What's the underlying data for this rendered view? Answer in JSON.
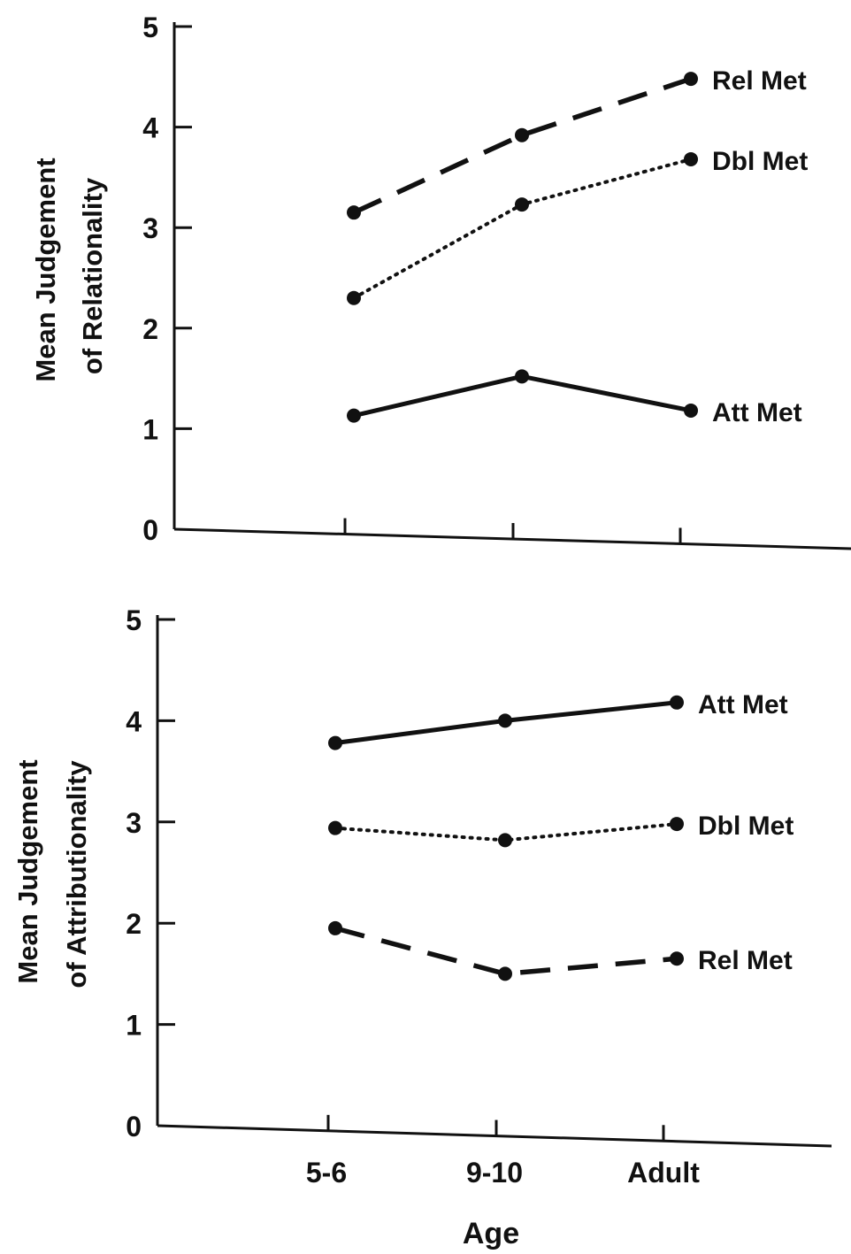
{
  "chart_data": [
    {
      "type": "line",
      "ylabel_lines": [
        "Mean Judgement",
        "of Relationality"
      ],
      "ylim": [
        0,
        5
      ],
      "yticks": [
        "0",
        "1",
        "2",
        "3",
        "4",
        "5"
      ],
      "categories": [
        "5-6",
        "9-10",
        "Adult"
      ],
      "series": [
        {
          "name": "Rel Met",
          "style": "dashed",
          "values": [
            3.15,
            3.92,
            4.48
          ]
        },
        {
          "name": "Dbl Met",
          "style": "dotted",
          "values": [
            2.3,
            3.23,
            3.68
          ]
        },
        {
          "name": "Att Met",
          "style": "solid",
          "values": [
            1.13,
            1.52,
            1.18
          ]
        }
      ]
    },
    {
      "type": "line",
      "ylabel_lines": [
        "Mean Judgement",
        "of Attributionality"
      ],
      "xlabel": "Age",
      "ylim": [
        0,
        5
      ],
      "yticks": [
        "0",
        "1",
        "2",
        "3",
        "4",
        "5"
      ],
      "categories": [
        "5-6",
        "9-10",
        "Adult"
      ],
      "series": [
        {
          "name": "Att Met",
          "style": "solid",
          "values": [
            3.78,
            4.0,
            4.18
          ]
        },
        {
          "name": "Dbl Met",
          "style": "dotted",
          "values": [
            2.94,
            2.82,
            2.98
          ]
        },
        {
          "name": "Rel Met",
          "style": "dashed",
          "values": [
            1.95,
            1.5,
            1.65
          ]
        }
      ]
    }
  ]
}
